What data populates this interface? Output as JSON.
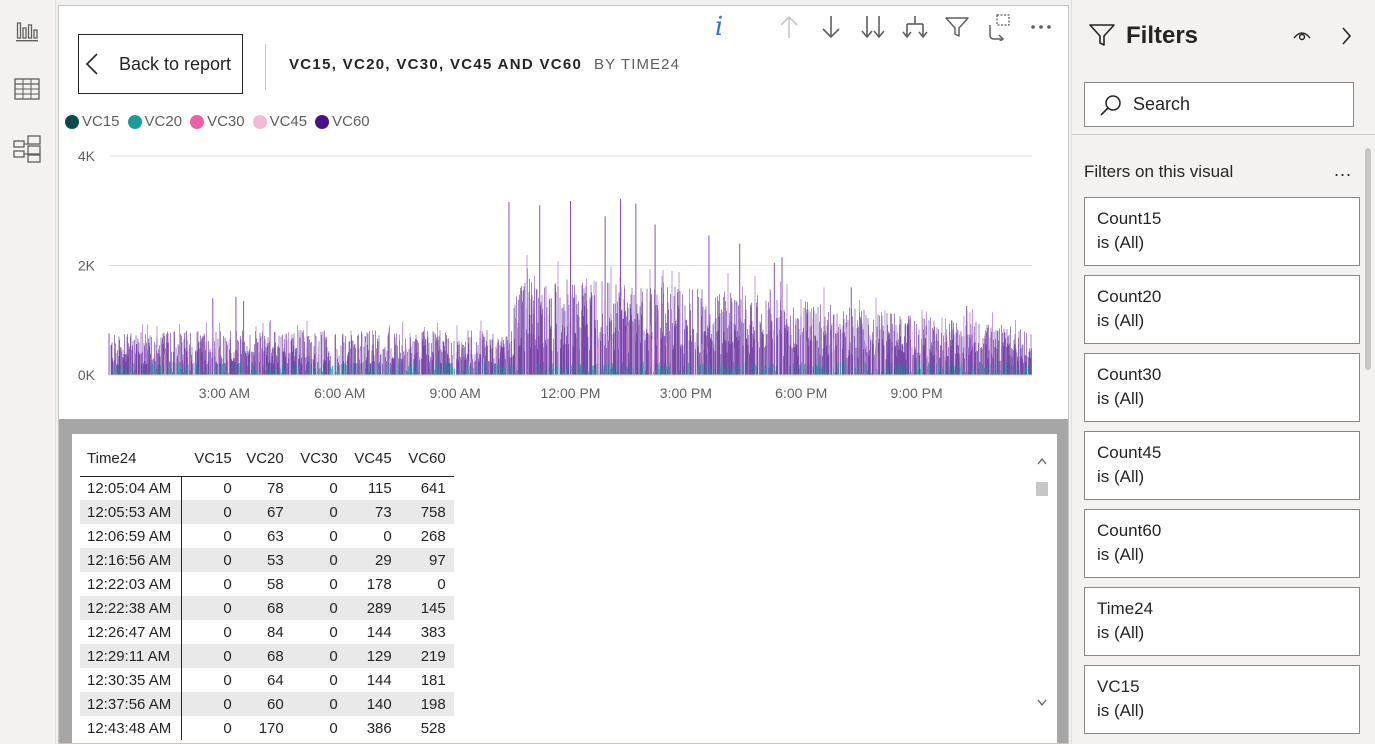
{
  "left_rail": {
    "items": [
      {
        "icon": "report-icon"
      },
      {
        "icon": "data-table-icon"
      },
      {
        "icon": "model-icon"
      }
    ]
  },
  "visual_header": {
    "toolbar_icons": [
      "info-icon",
      "drill-up-icon",
      "drill-down-icon",
      "expand-next-level-icon",
      "expand-hierarchy-icon",
      "filter-icon",
      "focus-mode-icon",
      "more-options-icon"
    ],
    "info_glyph": "i",
    "back_label": "Back to report",
    "title": "VC15, VC20, VC30, VC45 AND VC60",
    "subtitle": "BY TIME24"
  },
  "legend": [
    {
      "name": "VC15",
      "color": "#0b4a4a"
    },
    {
      "name": "VC20",
      "color": "#1a9c9c"
    },
    {
      "name": "VC30",
      "color": "#ee5fa8"
    },
    {
      "name": "VC45",
      "color": "#f7b8d8"
    },
    {
      "name": "VC60",
      "color": "#4b0f8c"
    }
  ],
  "chart_data": {
    "type": "area",
    "series": [
      {
        "name": "VC15",
        "color": "#0b4a4a"
      },
      {
        "name": "VC20",
        "color": "#1a9c9c"
      },
      {
        "name": "VC30",
        "color": "#ee5fa8"
      },
      {
        "name": "VC45",
        "color": "#f7b8d8"
      },
      {
        "name": "VC60",
        "color": "#4b0f8c"
      }
    ],
    "x_range_hours": [
      0,
      24
    ],
    "x_ticks": [
      {
        "label": "3:00 AM",
        "hour": 3
      },
      {
        "label": "6:00 AM",
        "hour": 6
      },
      {
        "label": "9:00 AM",
        "hour": 9
      },
      {
        "label": "12:00 PM",
        "hour": 12
      },
      {
        "label": "3:00 PM",
        "hour": 15
      },
      {
        "label": "6:00 PM",
        "hour": 18
      },
      {
        "label": "9:00 PM",
        "hour": 21
      }
    ],
    "y_ticks": [
      {
        "label": "0K",
        "value": 0
      },
      {
        "label": "2K",
        "value": 2000
      },
      {
        "label": "4K",
        "value": 4000
      }
    ],
    "ylim": [
      0,
      4000
    ],
    "grid": true,
    "baseline_profile": [
      {
        "hour": 0,
        "value": 700
      },
      {
        "hour": 1.3,
        "value": 780
      },
      {
        "hour": 10.5,
        "value": 780
      },
      {
        "hour": 10.55,
        "value": 1700
      },
      {
        "hour": 14,
        "value": 1600
      },
      {
        "hour": 17,
        "value": 1400
      },
      {
        "hour": 20,
        "value": 1100
      },
      {
        "hour": 24,
        "value": 850
      }
    ],
    "peaks": [
      {
        "hour": 0.0,
        "value": 760
      },
      {
        "hour": 2.7,
        "value": 1400
      },
      {
        "hour": 3.3,
        "value": 1430
      },
      {
        "hour": 3.5,
        "value": 1350
      },
      {
        "hour": 10.4,
        "value": 3160
      },
      {
        "hour": 11.2,
        "value": 3100
      },
      {
        "hour": 12.0,
        "value": 3180
      },
      {
        "hour": 12.9,
        "value": 2900
      },
      {
        "hour": 13.3,
        "value": 3220
      },
      {
        "hour": 13.7,
        "value": 3130
      },
      {
        "hour": 14.2,
        "value": 2750
      },
      {
        "hour": 15.6,
        "value": 2550
      },
      {
        "hour": 16.4,
        "value": 2400
      },
      {
        "hour": 17.3,
        "value": 2050
      },
      {
        "hour": 17.5,
        "value": 2150
      },
      {
        "hour": 19.3,
        "value": 1600
      },
      {
        "hour": 22.3,
        "value": 1260
      }
    ]
  },
  "table": {
    "columns": [
      "Time24",
      "VC15",
      "VC20",
      "VC30",
      "VC45",
      "VC60"
    ],
    "rows": [
      [
        "12:05:04 AM",
        "0",
        "78",
        "0",
        "115",
        "641"
      ],
      [
        "12:05:53 AM",
        "0",
        "67",
        "0",
        "73",
        "758"
      ],
      [
        "12:06:59 AM",
        "0",
        "63",
        "0",
        "0",
        "268"
      ],
      [
        "12:16:56 AM",
        "0",
        "53",
        "0",
        "29",
        "97"
      ],
      [
        "12:22:03 AM",
        "0",
        "58",
        "0",
        "178",
        "0"
      ],
      [
        "12:22:38 AM",
        "0",
        "68",
        "0",
        "289",
        "145"
      ],
      [
        "12:26:47 AM",
        "0",
        "84",
        "0",
        "144",
        "383"
      ],
      [
        "12:29:11 AM",
        "0",
        "68",
        "0",
        "129",
        "219"
      ],
      [
        "12:30:35 AM",
        "0",
        "64",
        "0",
        "144",
        "181"
      ],
      [
        "12:37:56 AM",
        "0",
        "60",
        "0",
        "140",
        "198"
      ],
      [
        "12:43:48 AM",
        "0",
        "170",
        "0",
        "386",
        "528"
      ]
    ]
  },
  "filters": {
    "title": "Filters",
    "search_placeholder": "Search",
    "section_label": "Filters on this visual",
    "more_label": "...",
    "cards": [
      {
        "name": "Count15",
        "value": "is (All)"
      },
      {
        "name": "Count20",
        "value": "is (All)"
      },
      {
        "name": "Count30",
        "value": "is (All)"
      },
      {
        "name": "Count45",
        "value": "is (All)"
      },
      {
        "name": "Count60",
        "value": "is (All)"
      },
      {
        "name": "Time24",
        "value": "is (All)"
      },
      {
        "name": "VC15",
        "value": "is (All)"
      }
    ]
  }
}
